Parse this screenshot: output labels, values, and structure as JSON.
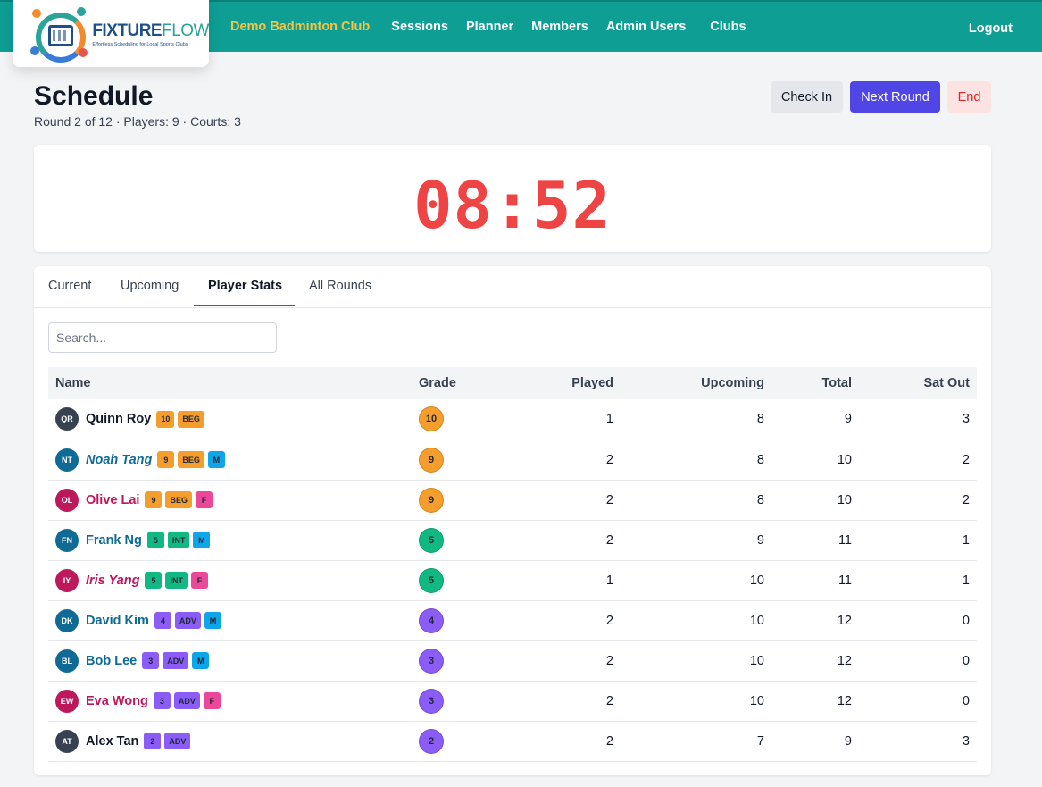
{
  "brand": {
    "name_part1": "FIXTURE",
    "name_part2": "FLOW",
    "tagline": "Effortless Scheduling for Local Sports Clubs"
  },
  "nav": {
    "club": "Demo Badminton Club",
    "items": [
      "Sessions",
      "Planner",
      "Members",
      "Admin Users",
      "Clubs"
    ],
    "logout": "Logout"
  },
  "header": {
    "title": "Schedule",
    "subtitle": "Round 2 of 12 · Players: 9 · Courts: 3",
    "buttons": {
      "check_in": "Check In",
      "next_round": "Next Round",
      "end": "End"
    }
  },
  "timer": {
    "display": "08:52"
  },
  "tabs": {
    "current": "Current",
    "upcoming": "Upcoming",
    "player_stats": "Player Stats",
    "all_rounds": "All Rounds",
    "active": "Player Stats"
  },
  "search": {
    "placeholder": "Search...",
    "value": ""
  },
  "table": {
    "columns": {
      "name": "Name",
      "grade": "Grade",
      "played": "Played",
      "upcoming": "Upcoming",
      "total": "Total",
      "sat_out": "Sat Out"
    },
    "rows": [
      {
        "initials": "QR",
        "name": "Quinn Roy",
        "grade": "10",
        "level": "BEG",
        "gender": "",
        "played": "1",
        "upcoming": "8",
        "total": "9",
        "sat_out": "3"
      },
      {
        "initials": "NT",
        "name": "Noah Tang",
        "grade": "9",
        "level": "BEG",
        "gender": "M",
        "played": "2",
        "upcoming": "8",
        "total": "10",
        "sat_out": "2"
      },
      {
        "initials": "OL",
        "name": "Olive Lai",
        "grade": "9",
        "level": "BEG",
        "gender": "F",
        "played": "2",
        "upcoming": "8",
        "total": "10",
        "sat_out": "2"
      },
      {
        "initials": "FN",
        "name": "Frank Ng",
        "grade": "5",
        "level": "INT",
        "gender": "M",
        "played": "2",
        "upcoming": "9",
        "total": "11",
        "sat_out": "1"
      },
      {
        "initials": "IY",
        "name": "Iris Yang",
        "grade": "5",
        "level": "INT",
        "gender": "F",
        "played": "1",
        "upcoming": "10",
        "total": "11",
        "sat_out": "1"
      },
      {
        "initials": "DK",
        "name": "David Kim",
        "grade": "4",
        "level": "ADV",
        "gender": "M",
        "played": "2",
        "upcoming": "10",
        "total": "12",
        "sat_out": "0"
      },
      {
        "initials": "BL",
        "name": "Bob Lee",
        "grade": "3",
        "level": "ADV",
        "gender": "M",
        "played": "2",
        "upcoming": "10",
        "total": "12",
        "sat_out": "0"
      },
      {
        "initials": "EW",
        "name": "Eva Wong",
        "grade": "3",
        "level": "ADV",
        "gender": "F",
        "played": "2",
        "upcoming": "10",
        "total": "12",
        "sat_out": "0"
      },
      {
        "initials": "AT",
        "name": "Alex Tan",
        "grade": "2",
        "level": "ADV",
        "gender": "",
        "played": "2",
        "upcoming": "7",
        "total": "9",
        "sat_out": "3"
      }
    ]
  },
  "colors": {
    "nav_bg": "#0e9e94",
    "club_link": "#f5c542",
    "accent": "#4f46e5",
    "timer": "#ef4444",
    "grade_beg": "#f59e2b",
    "grade_int": "#10b981",
    "grade_adv": "#8b5cf6",
    "gender_m": "#0ea5e9",
    "gender_f": "#ec4899",
    "name_male": "#0f6a96",
    "name_female": "#be185d",
    "name_neutral": "#111827",
    "avatar_neutral": "#374151"
  },
  "styles": {
    "italic_names": [
      "Noah Tang",
      "Iris Yang"
    ]
  }
}
